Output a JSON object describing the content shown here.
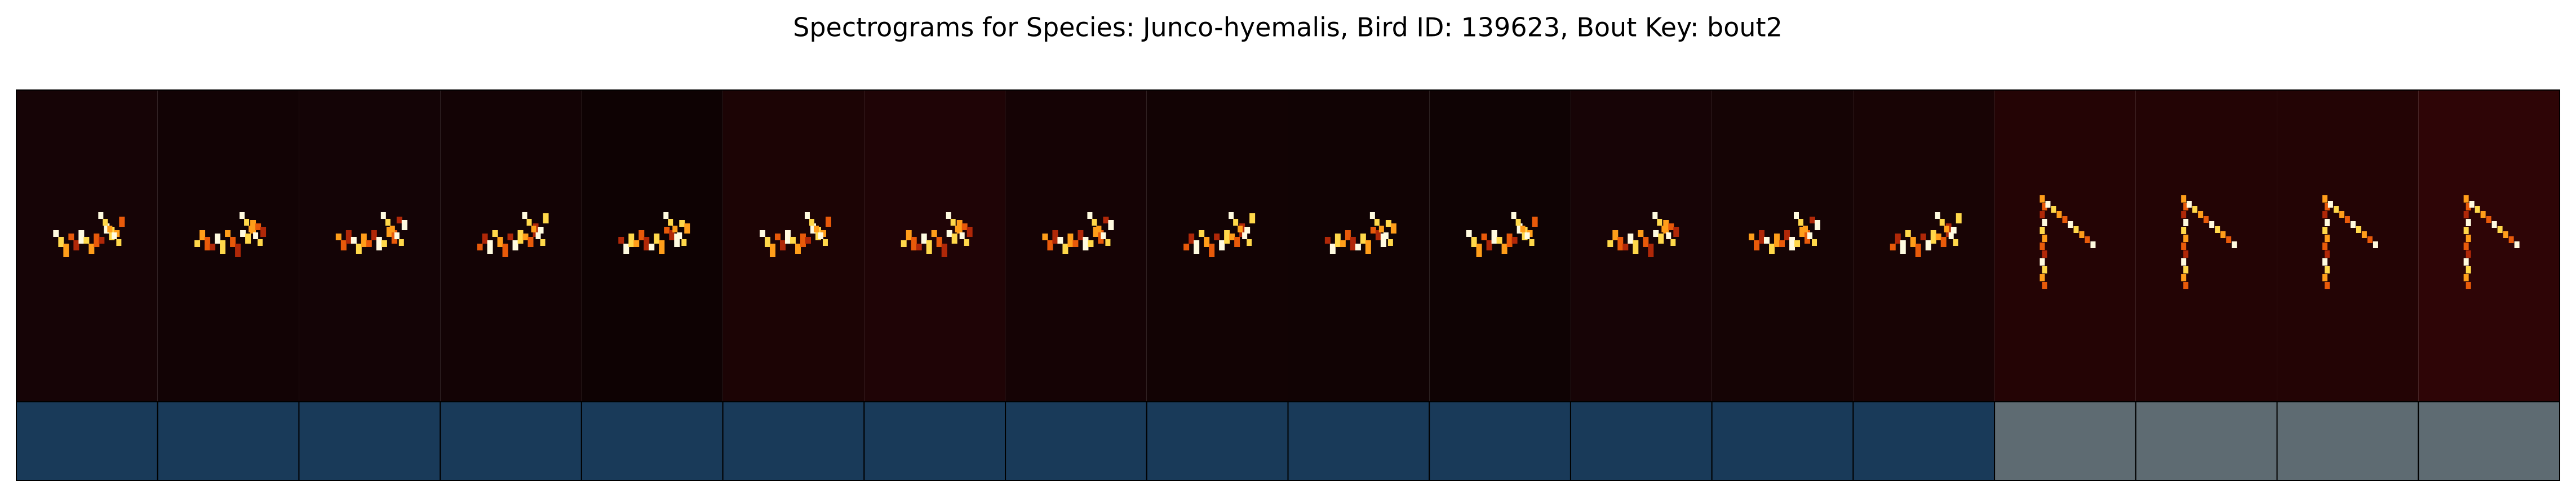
{
  "title": "Spectrograms for Species: Junco-hyemalis, Bird ID: 139623, Bout Key: bout2"
}
